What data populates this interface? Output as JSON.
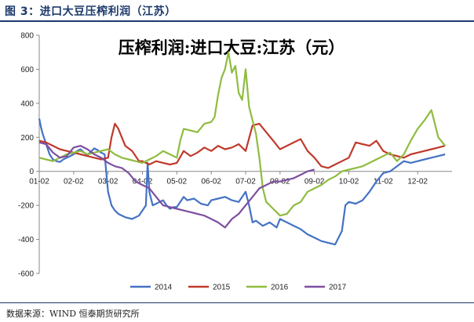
{
  "header": {
    "figure_title": "图 3：进口大豆压榨利润（江苏）"
  },
  "footer": {
    "source": "数据来源：WIND 恒泰期货研究所"
  },
  "colors": {
    "2014": "#4472c4",
    "2015": "#c0392b",
    "2016": "#8fbc3f",
    "2017": "#7d4fa0",
    "accent": "#1d3a6b"
  },
  "chart_data": {
    "type": "line",
    "title": "压榨利润:进口大豆:江苏（元）",
    "xlabel": "",
    "ylabel": "",
    "x_range": [
      1,
      13
    ],
    "ylim": [
      -600,
      800
    ],
    "y_ticks": [
      800,
      600,
      400,
      200,
      0,
      -200,
      -400,
      -600
    ],
    "x_ticks": [
      {
        "label": "01-02",
        "x": 1
      },
      {
        "label": "02-02",
        "x": 2
      },
      {
        "label": "03-02",
        "x": 3
      },
      {
        "label": "04-02",
        "x": 4
      },
      {
        "label": "05-02",
        "x": 5
      },
      {
        "label": "06-02",
        "x": 6
      },
      {
        "label": "07-02",
        "x": 7
      },
      {
        "label": "08-02",
        "x": 8
      },
      {
        "label": "09-02",
        "x": 9
      },
      {
        "label": "10-02",
        "x": 10
      },
      {
        "label": "11-02",
        "x": 11
      },
      {
        "label": "12-02",
        "x": 12
      }
    ],
    "grid": false,
    "legend_position": "bottom",
    "series": [
      {
        "name": "2014",
        "color": "#4472c4",
        "x": [
          1.0,
          1.05,
          1.1,
          1.2,
          1.3,
          1.4,
          1.5,
          1.6,
          1.7,
          1.8,
          1.9,
          2.0,
          2.1,
          2.2,
          2.3,
          2.4,
          2.5,
          2.6,
          2.7,
          2.8,
          2.9,
          3.0,
          3.05,
          3.1,
          3.2,
          3.3,
          3.5,
          3.7,
          3.9,
          4.0,
          4.1,
          4.15,
          4.2,
          4.3,
          4.4,
          4.5,
          4.6,
          4.7,
          4.8,
          4.9,
          5.0,
          5.1,
          5.2,
          5.3,
          5.5,
          5.7,
          5.9,
          6.0,
          6.2,
          6.4,
          6.6,
          6.8,
          7.0,
          7.1,
          7.2,
          7.3,
          7.5,
          7.7,
          7.9,
          8.0,
          8.2,
          8.4,
          8.6,
          8.8,
          9.0,
          9.2,
          9.4,
          9.6,
          9.8,
          9.9,
          10.0,
          10.2,
          10.4,
          10.6,
          10.8,
          11.0,
          11.2,
          11.4,
          11.6,
          11.8,
          12.0,
          12.2,
          12.4,
          12.6,
          12.8
        ],
        "y": [
          310,
          260,
          220,
          160,
          100,
          70,
          60,
          55,
          70,
          80,
          90,
          100,
          120,
          130,
          110,
          95,
          115,
          135,
          125,
          110,
          100,
          -120,
          -160,
          -200,
          -230,
          -250,
          -270,
          -280,
          -260,
          -230,
          -200,
          50,
          -120,
          -200,
          -190,
          -180,
          -170,
          -200,
          -220,
          -210,
          -210,
          -180,
          -150,
          -170,
          -160,
          -190,
          -200,
          -170,
          -160,
          -150,
          -170,
          -180,
          -120,
          -200,
          -300,
          -290,
          -320,
          -300,
          -330,
          -280,
          -300,
          -320,
          -340,
          -370,
          -390,
          -410,
          -420,
          -430,
          -350,
          -200,
          -180,
          -190,
          -170,
          -120,
          -60,
          -10,
          0,
          30,
          60,
          50,
          60,
          70,
          80,
          90,
          100
        ]
      },
      {
        "name": "2015",
        "color": "#c0392b",
        "x": [
          1.0,
          1.2,
          1.4,
          1.6,
          1.8,
          2.0,
          2.2,
          2.4,
          2.6,
          2.8,
          3.0,
          3.1,
          3.2,
          3.3,
          3.4,
          3.5,
          3.7,
          3.9,
          4.0,
          4.2,
          4.4,
          4.6,
          4.8,
          5.0,
          5.2,
          5.4,
          5.6,
          5.8,
          6.0,
          6.2,
          6.4,
          6.6,
          6.8,
          7.0,
          7.2,
          7.4,
          7.6,
          7.8,
          8.0,
          8.2,
          8.4,
          8.6,
          8.8,
          9.0,
          9.2,
          9.4,
          9.6,
          9.8,
          10.0,
          10.2,
          10.4,
          10.6,
          10.8,
          11.0,
          11.2,
          11.4,
          11.6,
          11.8,
          12.0,
          12.2,
          12.4,
          12.6,
          12.8
        ],
        "y": [
          180,
          170,
          150,
          130,
          120,
          110,
          100,
          90,
          80,
          70,
          80,
          200,
          280,
          250,
          200,
          150,
          120,
          60,
          60,
          40,
          60,
          50,
          40,
          50,
          120,
          90,
          110,
          140,
          120,
          150,
          130,
          140,
          160,
          120,
          270,
          280,
          230,
          180,
          130,
          150,
          170,
          190,
          120,
          80,
          30,
          20,
          40,
          60,
          80,
          170,
          160,
          150,
          180,
          120,
          100,
          90,
          80,
          100,
          110,
          120,
          130,
          140,
          150
        ]
      },
      {
        "name": "2016",
        "color": "#8fbc3f",
        "x": [
          1.0,
          1.2,
          1.4,
          1.6,
          1.8,
          2.0,
          2.2,
          2.4,
          2.6,
          2.8,
          3.0,
          3.2,
          3.4,
          3.6,
          3.8,
          4.0,
          4.2,
          4.4,
          4.6,
          4.8,
          5.0,
          5.1,
          5.2,
          5.4,
          5.6,
          5.8,
          6.0,
          6.1,
          6.2,
          6.3,
          6.4,
          6.5,
          6.6,
          6.7,
          6.8,
          6.9,
          7.0,
          7.1,
          7.2,
          7.3,
          7.4,
          7.5,
          7.6,
          7.7,
          7.8,
          7.9,
          8.0,
          8.2,
          8.4,
          8.6,
          8.8,
          9.0,
          9.2,
          9.4,
          9.6,
          9.8,
          10.0,
          10.2,
          10.4,
          10.6,
          10.8,
          11.0,
          11.2,
          11.4,
          11.6,
          11.8,
          12.0,
          12.2,
          12.4,
          12.6,
          12.8
        ],
        "y": [
          80,
          70,
          60,
          80,
          100,
          110,
          120,
          100,
          110,
          120,
          130,
          100,
          80,
          70,
          60,
          50,
          70,
          90,
          120,
          100,
          80,
          180,
          250,
          240,
          230,
          280,
          290,
          320,
          450,
          550,
          600,
          700,
          580,
          620,
          460,
          420,
          600,
          380,
          300,
          220,
          80,
          -100,
          -180,
          -200,
          -220,
          -240,
          -260,
          -250,
          -200,
          -180,
          -120,
          -100,
          -80,
          -50,
          -30,
          0,
          10,
          20,
          30,
          50,
          70,
          90,
          110,
          60,
          100,
          180,
          250,
          300,
          360,
          200,
          150
        ]
      },
      {
        "name": "2017",
        "color": "#7d4fa0",
        "x": [
          1.0,
          1.2,
          1.4,
          1.6,
          1.8,
          2.0,
          2.2,
          2.4,
          2.6,
          2.8,
          3.0,
          3.2,
          3.4,
          3.6,
          3.8,
          4.0,
          4.2,
          4.4,
          4.6,
          4.8,
          5.0,
          5.2,
          5.4,
          5.6,
          5.8,
          6.0,
          6.2,
          6.4,
          6.6,
          6.8,
          7.0,
          7.2,
          7.4,
          7.6,
          7.8,
          8.0,
          8.2,
          8.4,
          8.6,
          8.8,
          9.0
        ],
        "y": [
          170,
          160,
          110,
          80,
          90,
          140,
          150,
          130,
          100,
          80,
          50,
          30,
          20,
          -10,
          -60,
          -80,
          -100,
          -150,
          -200,
          -210,
          -220,
          -230,
          -240,
          -250,
          -260,
          -280,
          -300,
          -330,
          -280,
          -250,
          -200,
          -150,
          -100,
          -80,
          -60,
          -60,
          -50,
          -40,
          -20,
          0,
          10
        ]
      }
    ]
  }
}
